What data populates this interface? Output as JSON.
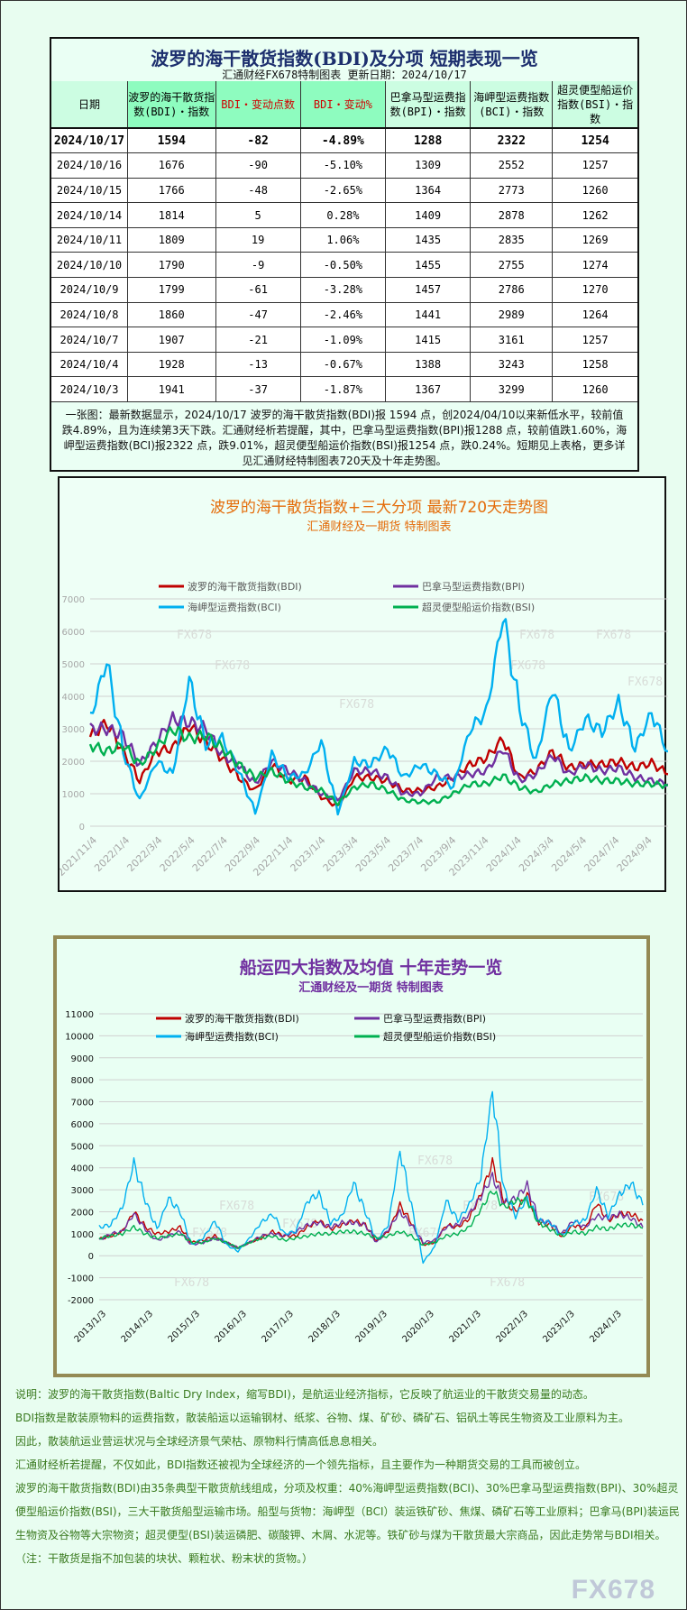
{
  "table": {
    "title": "波罗的海干散货指数(BDI)及分项 短期表现一览",
    "subtitle": "汇通财经FX678特制图表    更新日期：2024/10/17",
    "headers": [
      "日期",
      "波罗的海干散货指数(BDI)・指数",
      "BDI・变动点数",
      "BDI・变动%",
      "巴拿马型运费指数(BPI)・指数",
      "海岬型运费指数(BCI)・指数",
      "超灵便型船运价指数(BSI)・指数"
    ],
    "rows": [
      [
        "2024/10/17",
        "1594",
        "-82",
        "-4.89%",
        "1288",
        "2322",
        "1254"
      ],
      [
        "2024/10/16",
        "1676",
        "-90",
        "-5.10%",
        "1309",
        "2552",
        "1257"
      ],
      [
        "2024/10/15",
        "1766",
        "-48",
        "-2.65%",
        "1364",
        "2773",
        "1260"
      ],
      [
        "2024/10/14",
        "1814",
        "5",
        "0.28%",
        "1409",
        "2878",
        "1262"
      ],
      [
        "2024/10/11",
        "1809",
        "19",
        "1.06%",
        "1435",
        "2835",
        "1269"
      ],
      [
        "2024/10/10",
        "1790",
        "-9",
        "-0.50%",
        "1455",
        "2755",
        "1274"
      ],
      [
        "2024/10/9",
        "1799",
        "-61",
        "-3.28%",
        "1457",
        "2786",
        "1270"
      ],
      [
        "2024/10/8",
        "1860",
        "-47",
        "-2.46%",
        "1441",
        "2989",
        "1264"
      ],
      [
        "2024/10/7",
        "1907",
        "-21",
        "-1.09%",
        "1415",
        "3161",
        "1257"
      ],
      [
        "2024/10/4",
        "1928",
        "-13",
        "-0.67%",
        "1388",
        "3243",
        "1258"
      ],
      [
        "2024/10/3",
        "1941",
        "-37",
        "-1.87%",
        "1367",
        "3299",
        "1260"
      ]
    ],
    "note": "一张图：最新数据显示，2024/10/17 波罗的海干散货指数(BDI)报 1594 点，创2024/04/10以来新低水平，较前值跌4.89%，且为连续第3天下跌。汇通财经析若提醒，其中，巴拿马型运费指数(BPI)报1288 点，较前值跌1.60%，海岬型运费指数(BCI)报2322 点，跌9.01%，超灵便型船运价指数(BSI)报1254 点，跌0.24%。短期见上表格，更多详见汇通财经特制图表720天及十年走势图。"
  },
  "chart_data": [
    {
      "type": "line",
      "title": "波罗的海干散货指数+三大分项  最新720天走势图",
      "subtitle": "汇通财经及一期货  特制图表",
      "ylim": [
        0,
        7000
      ],
      "yticks": [
        0,
        1000,
        2000,
        3000,
        4000,
        5000,
        6000,
        7000
      ],
      "xticks": [
        "2021/11/4",
        "2022/1/4",
        "2022/3/4",
        "2022/5/4",
        "2022/7/4",
        "2022/9/4",
        "2022/11/4",
        "2023/1/4",
        "2023/3/4",
        "2023/5/4",
        "2023/7/4",
        "2023/9/4",
        "2023/11/4",
        "2024/1/4",
        "2024/3/4",
        "2024/5/4",
        "2024/7/4",
        "2024/9/4"
      ],
      "x_start": "2021/11",
      "x_end": "2024/10",
      "grid": true,
      "legend": "top",
      "series": [
        {
          "name": "波罗的海干散货指数(BDI)",
          "color": "#c00000",
          "values": [
            2750,
            3200,
            2300,
            1400,
            2300,
            2400,
            3100,
            2600,
            2100,
            1500,
            1100,
            1900,
            1400,
            1500,
            900,
            600,
            1500,
            1500,
            1400,
            1100,
            1100,
            1200,
            1500,
            1900,
            2100,
            2700,
            1500,
            1700,
            2300,
            1800,
            1900,
            1900,
            2000,
            1800,
            1950,
            1600
          ]
        },
        {
          "name": "巴拿马型运费指数(BPI)",
          "color": "#7030a0",
          "values": [
            3000,
            3000,
            2800,
            1900,
            2600,
            3300,
            3200,
            3000,
            2200,
            1900,
            1300,
            2000,
            1700,
            1400,
            1000,
            800,
            1700,
            1700,
            1500,
            1000,
            1000,
            1500,
            1500,
            1600,
            1700,
            2400,
            1400,
            1600,
            2200,
            1600,
            1900,
            1700,
            1800,
            1500,
            1400,
            1300
          ]
        },
        {
          "name": "海岬型运费指数(BCI)",
          "color": "#00b0f0",
          "values": [
            3300,
            5100,
            2300,
            800,
            2000,
            1600,
            4500,
            2500,
            2700,
            1700,
            400,
            2200,
            1500,
            1600,
            2600,
            400,
            2000,
            1900,
            2400,
            1500,
            1900,
            1600,
            1200,
            3000,
            3500,
            6500,
            3600,
            2000,
            4300,
            2300,
            3300,
            2900,
            3800,
            2400,
            3500,
            2300
          ]
        },
        {
          "name": "超灵便型船运价指数(BSI)",
          "color": "#00b050",
          "values": [
            2500,
            2300,
            2500,
            1900,
            2400,
            3000,
            2700,
            2800,
            2400,
            1900,
            1500,
            1700,
            1400,
            1200,
            1100,
            700,
            1200,
            1300,
            1100,
            800,
            750,
            750,
            1000,
            1300,
            1300,
            1550,
            1200,
            1050,
            1300,
            1400,
            1500,
            1400,
            1400,
            1300,
            1300,
            1254
          ]
        }
      ],
      "watermark": "FX678"
    },
    {
      "type": "line",
      "title": "船运四大指数及均值 十年走势一览",
      "subtitle": "汇通财经及一期货 特制图表",
      "ylim": [
        -2000,
        11000
      ],
      "yticks": [
        -2000,
        -1000,
        0,
        1000,
        2000,
        3000,
        4000,
        5000,
        6000,
        7000,
        8000,
        9000,
        10000,
        11000
      ],
      "xticks": [
        "2013/1/3",
        "2014/1/3",
        "2015/1/3",
        "2016/1/3",
        "2017/1/3",
        "2018/1/3",
        "2019/1/3",
        "2020/1/3",
        "2021/1/3",
        "2022/1/3",
        "2023/1/3",
        "2024/1/3"
      ],
      "x_start": "2013/1",
      "x_end": "2024/10",
      "grid": true,
      "legend": "top",
      "series": [
        {
          "name": "波罗的海干散货指数(BDI)",
          "color": "#c00000",
          "values": [
            750,
            900,
            1100,
            2000,
            1300,
            1000,
            1100,
            1300,
            600,
            700,
            900,
            600,
            350,
            600,
            800,
            1100,
            900,
            900,
            1300,
            1600,
            1200,
            1400,
            1600,
            1400,
            700,
            1100,
            2300,
            1500,
            500,
            600,
            1400,
            1300,
            1700,
            2800,
            4200,
            2500,
            2000,
            2800,
            1500,
            1400,
            900,
            1400,
            1200,
            2400,
            1600,
            1900,
            1900,
            1600
          ]
        },
        {
          "name": "巴拿马型运费指数(BPI)",
          "color": "#7030a0",
          "values": [
            700,
            1000,
            1100,
            1900,
            1200,
            700,
            900,
            1100,
            500,
            600,
            800,
            600,
            350,
            600,
            900,
            1000,
            900,
            1100,
            1400,
            1500,
            1300,
            1500,
            1500,
            1400,
            600,
            1200,
            2000,
            1400,
            600,
            700,
            1300,
            1400,
            1900,
            2700,
            3600,
            2400,
            2600,
            3200,
            1600,
            1500,
            1000,
            1600,
            1300,
            1800,
            1700,
            1900,
            1700,
            1300
          ]
        },
        {
          "name": "海岬型运费指数(BCI)",
          "color": "#00b0f0",
          "values": [
            1300,
            1400,
            2200,
            4200,
            2500,
            1200,
            2600,
            2000,
            500,
            800,
            1600,
            500,
            200,
            800,
            1500,
            1900,
            1000,
            1100,
            2500,
            2800,
            1500,
            1800,
            3300,
            2000,
            700,
            1400,
            4800,
            2300,
            -300,
            400,
            2500,
            1600,
            2300,
            3600,
            7500,
            3000,
            1800,
            2600,
            1600,
            1500,
            900,
            1500,
            1600,
            3000,
            1800,
            2800,
            3300,
            2300
          ]
        },
        {
          "name": "超灵便型船运价指数(BSI)",
          "color": "#00b050",
          "values": [
            800,
            900,
            1000,
            1300,
            1000,
            800,
            900,
            1000,
            600,
            600,
            800,
            600,
            350,
            600,
            800,
            900,
            700,
            800,
            900,
            1000,
            1000,
            1100,
            1100,
            1000,
            800,
            900,
            1100,
            900,
            500,
            600,
            900,
            1000,
            1300,
            2100,
            3000,
            2200,
            2500,
            2500,
            1500,
            1200,
            900,
            1100,
            1000,
            1300,
            1200,
            1400,
            1400,
            1254
          ]
        }
      ],
      "watermark": "FX678"
    }
  ],
  "description": [
    "说明：波罗的海干散货指数(Baltic Dry Index，缩写BDI)，是航运业经济指标，它反映了航运业的干散货交易量的动态。",
    "BDI指数是散装原物料的运费指数，散装船运以运输钢材、纸浆、谷物、煤、矿砂、磷矿石、铝矾土等民生物资及工业原料为主。",
    "因此，散装航运业营运状况与全球经济景气荣枯、原物料行情高低息息相关。",
    "汇通财经析若提醒，不仅如此，BDI指数还被视为全球经济的一个领先指标，且主要作为一种期货交易的工具而被创立。",
    "波罗的海干散货指数(BDI)由35条典型干散货航线组成，分项及权重：40%海岬型运费指数(BCI)、30%巴拿马型运费指数(BPI)、30%超灵便型船运价指数(BSI)，三大干散货船型运输市场。船型与货物：海岬型（BCI）装运铁矿砂、焦煤、磷矿石等工业原料；巴拿马(BPI)装运民生物资及谷物等大宗物资；超灵便型(BSI)装运磷肥、碳酸钾、木屑、水泥等。铁矿砂与煤为干散货最大宗商品，因此走势常与BDI相关。（注：干散货是指不加包装的块状、颗粒状、粉末状的货物。）"
  ],
  "logo": "FX678"
}
